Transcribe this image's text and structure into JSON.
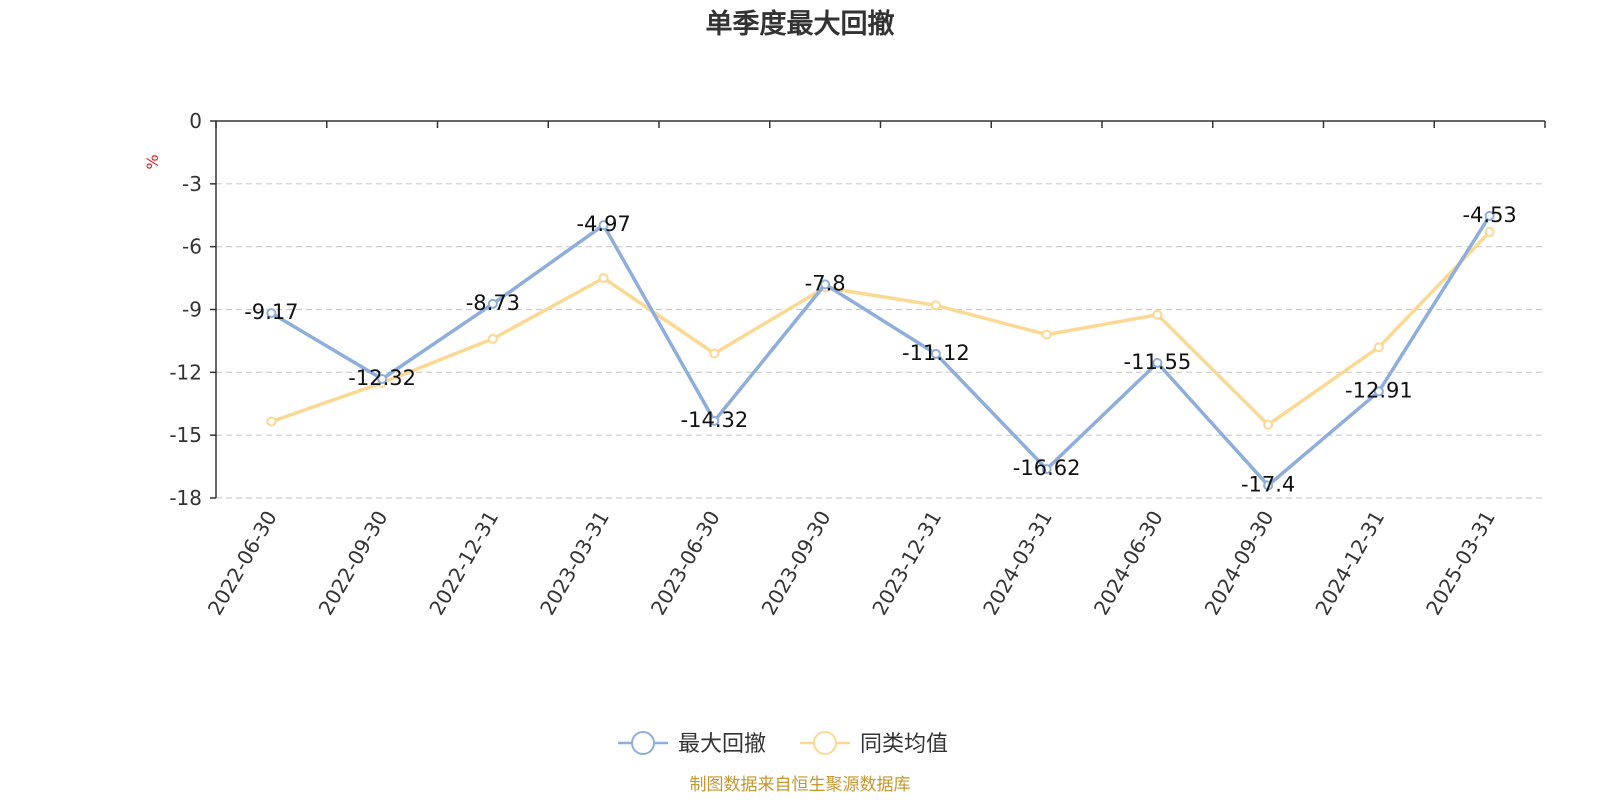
{
  "chart_data": {
    "type": "line",
    "title": "单季度最大回撤",
    "ylabel": "%",
    "xlabel": "",
    "categories": [
      "2022-06-30",
      "2022-09-30",
      "2022-12-31",
      "2023-03-31",
      "2023-06-30",
      "2023-09-30",
      "2023-12-31",
      "2024-03-31",
      "2024-06-30",
      "2024-09-30",
      "2024-12-31",
      "2025-03-31"
    ],
    "ylim": [
      -18,
      0
    ],
    "yticks": [
      0,
      -3,
      -6,
      -9,
      -12,
      -15,
      -18
    ],
    "grid": true,
    "legend_position": "bottom-center",
    "series": [
      {
        "name": "最大回撤",
        "color": "#8eaedb",
        "show_labels": true,
        "values": [
          -9.17,
          -12.32,
          -8.73,
          -4.97,
          -14.32,
          -7.8,
          -11.12,
          -16.62,
          -11.55,
          -17.4,
          -12.91,
          -4.53
        ]
      },
      {
        "name": "同类均值",
        "color": "#fbd993",
        "show_labels": false,
        "values": [
          -14.35,
          -12.5,
          -10.4,
          -7.5,
          -11.1,
          -7.95,
          -8.8,
          -10.2,
          -9.25,
          -14.5,
          -10.8,
          -5.3
        ]
      }
    ]
  },
  "source_text": "制图数据来自恒生聚源数据库"
}
